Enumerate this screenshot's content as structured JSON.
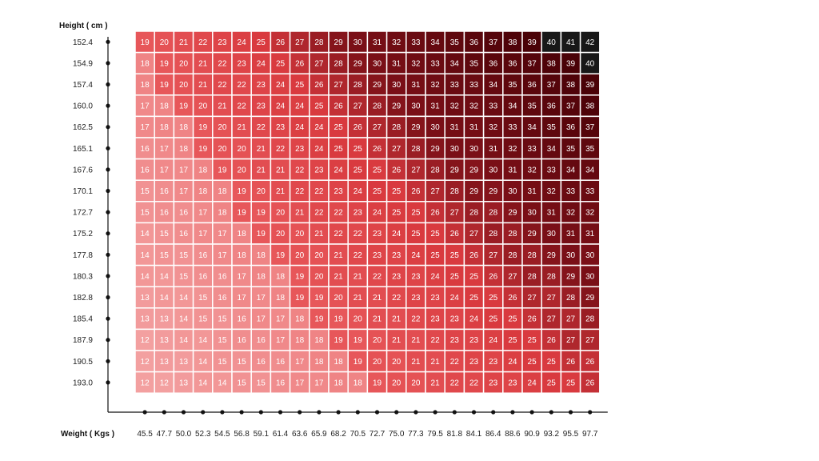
{
  "chart_data": {
    "type": "heatmap",
    "ylabel": "Height ( cm )",
    "xlabel": "Weight ( Kgs )",
    "y": [
      "152.4",
      "154.9",
      "157.4",
      "160.0",
      "162.5",
      "165.1",
      "167.6",
      "170.1",
      "172.7",
      "175.2",
      "177.8",
      "180.3",
      "182.8",
      "185.4",
      "187.9",
      "190.5",
      "193.0"
    ],
    "x": [
      "45.5",
      "47.7",
      "50.0",
      "52.3",
      "54.5",
      "56.8",
      "59.1",
      "61.4",
      "63.6",
      "65.9",
      "68.2",
      "70.5",
      "72.7",
      "75.0",
      "77.3",
      "79.5",
      "81.8",
      "84.1",
      "86.4",
      "88.6",
      "90.9",
      "93.2",
      "95.5",
      "97.7"
    ],
    "values": [
      [
        19,
        20,
        21,
        22,
        23,
        24,
        25,
        26,
        27,
        28,
        29,
        30,
        31,
        32,
        33,
        34,
        35,
        36,
        37,
        38,
        39,
        40,
        41,
        42
      ],
      [
        18,
        19,
        20,
        21,
        22,
        23,
        24,
        25,
        26,
        27,
        28,
        29,
        30,
        31,
        32,
        33,
        34,
        35,
        36,
        36,
        37,
        38,
        39,
        40
      ],
      [
        18,
        19,
        20,
        21,
        22,
        22,
        23,
        24,
        25,
        26,
        27,
        28,
        29,
        30,
        31,
        32,
        33,
        33,
        34,
        35,
        36,
        37,
        38,
        39
      ],
      [
        17,
        18,
        19,
        20,
        21,
        22,
        23,
        24,
        24,
        25,
        26,
        27,
        28,
        29,
        30,
        31,
        32,
        32,
        33,
        34,
        35,
        36,
        37,
        38
      ],
      [
        17,
        18,
        18,
        19,
        20,
        21,
        22,
        23,
        24,
        24,
        25,
        26,
        27,
        28,
        29,
        30,
        31,
        31,
        32,
        33,
        34,
        35,
        36,
        37
      ],
      [
        16,
        17,
        18,
        19,
        20,
        20,
        21,
        22,
        23,
        24,
        25,
        25,
        26,
        27,
        28,
        29,
        30,
        30,
        31,
        32,
        33,
        34,
        35,
        35
      ],
      [
        16,
        17,
        17,
        18,
        19,
        20,
        21,
        21,
        22,
        23,
        24,
        25,
        25,
        26,
        27,
        28,
        29,
        29,
        30,
        31,
        32,
        33,
        34,
        34
      ],
      [
        15,
        16,
        17,
        18,
        18,
        19,
        20,
        21,
        22,
        22,
        23,
        24,
        25,
        25,
        26,
        27,
        28,
        29,
        29,
        30,
        31,
        32,
        33,
        33
      ],
      [
        15,
        16,
        16,
        17,
        18,
        19,
        19,
        20,
        21,
        22,
        22,
        23,
        24,
        25,
        25,
        26,
        27,
        28,
        28,
        29,
        30,
        31,
        32,
        32
      ],
      [
        14,
        15,
        16,
        17,
        17,
        18,
        19,
        20,
        20,
        21,
        22,
        22,
        23,
        24,
        25,
        25,
        26,
        27,
        28,
        28,
        29,
        30,
        31,
        31
      ],
      [
        14,
        15,
        15,
        16,
        17,
        18,
        18,
        19,
        20,
        20,
        21,
        22,
        23,
        23,
        24,
        25,
        25,
        26,
        27,
        28,
        28,
        29,
        30,
        30
      ],
      [
        14,
        14,
        15,
        16,
        16,
        17,
        18,
        18,
        19,
        20,
        21,
        21,
        22,
        23,
        23,
        24,
        25,
        25,
        26,
        27,
        28,
        28,
        29,
        30
      ],
      [
        13,
        14,
        14,
        15,
        16,
        17,
        17,
        18,
        19,
        19,
        20,
        21,
        21,
        22,
        23,
        23,
        24,
        25,
        25,
        26,
        27,
        27,
        28,
        29
      ],
      [
        13,
        13,
        14,
        15,
        15,
        16,
        17,
        17,
        18,
        19,
        19,
        20,
        21,
        21,
        22,
        23,
        23,
        24,
        25,
        25,
        26,
        27,
        27,
        28
      ],
      [
        12,
        13,
        14,
        14,
        15,
        16,
        16,
        17,
        18,
        18,
        19,
        19,
        20,
        21,
        21,
        22,
        23,
        23,
        24,
        25,
        25,
        26,
        27,
        27
      ],
      [
        12,
        13,
        13,
        14,
        15,
        15,
        16,
        16,
        17,
        18,
        18,
        19,
        20,
        20,
        21,
        21,
        22,
        23,
        23,
        24,
        25,
        25,
        26,
        26
      ],
      [
        12,
        12,
        13,
        14,
        14,
        15,
        15,
        16,
        17,
        17,
        18,
        18,
        19,
        20,
        20,
        21,
        22,
        22,
        23,
        23,
        24,
        25,
        25,
        26
      ]
    ],
    "color_scale": {
      "light": "#f3a0a0",
      "mid": "#d93a3f",
      "dark": "#7a0f17",
      "darkest": "#4a0207",
      "black": "#181818"
    },
    "grid": true,
    "legend": "none"
  }
}
